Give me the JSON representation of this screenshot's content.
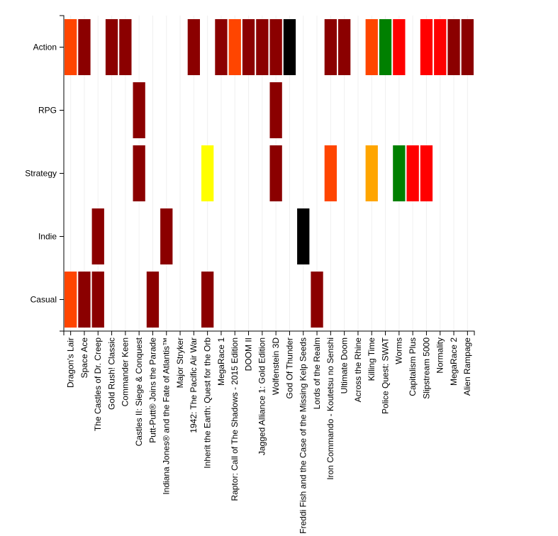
{
  "chart_data": {
    "type": "heatmap",
    "title": "",
    "xlabel": "",
    "ylabel": "",
    "y_categories": [
      "Action",
      "RPG",
      "Strategy",
      "Indie",
      "Casual"
    ],
    "x_categories": [
      "Dragon's Lair",
      "Space Ace",
      "The Castles of Dr. Creep",
      "Gold Rush! Classic",
      "Commander Keen",
      "Castles II: Siege & Conquest",
      "Putt-Putt® Joins the Parade",
      "Indiana Jones® and the Fate of Atlantis™",
      "Major Stryker",
      "1942: The Pacific Air War",
      "Inherit the Earth: Quest for the Orb",
      "MegaRace 1",
      "Raptor: Call of The Shadows - 2015 Edition",
      "DOOM II",
      "Jagged Alliance 1: Gold Edition",
      "Wolfenstein 3D",
      "God Of Thunder",
      "Freddi Fish and the Case of the Missing Kelp Seeds",
      "Lords of the Realm",
      "Iron Commando - Koutetsu no Senshi",
      "Ultimate Doom",
      "Across the Rhine",
      "Killing Time",
      "Police Quest: SWAT",
      "Worms",
      "Capitalism Plus",
      "Slipstream 5000",
      "Normality",
      "MegaRace 2",
      "Alien Rampage"
    ],
    "cells": [
      {
        "x": "Dragon's Lair",
        "y": "Action",
        "color": "#ff4500"
      },
      {
        "x": "Space Ace",
        "y": "Action",
        "color": "#8b0000"
      },
      {
        "x": "Gold Rush! Classic",
        "y": "Action",
        "color": "#8b0000"
      },
      {
        "x": "Commander Keen",
        "y": "Action",
        "color": "#8b0000"
      },
      {
        "x": "1942: The Pacific Air War",
        "y": "Action",
        "color": "#8b0000"
      },
      {
        "x": "MegaRace 1",
        "y": "Action",
        "color": "#8b0000"
      },
      {
        "x": "Raptor: Call of The Shadows - 2015 Edition",
        "y": "Action",
        "color": "#ff4500"
      },
      {
        "x": "DOOM II",
        "y": "Action",
        "color": "#8b0000"
      },
      {
        "x": "Jagged Alliance 1: Gold Edition",
        "y": "Action",
        "color": "#8b0000"
      },
      {
        "x": "Wolfenstein 3D",
        "y": "Action",
        "color": "#8b0000"
      },
      {
        "x": "God Of Thunder",
        "y": "Action",
        "color": "#000000"
      },
      {
        "x": "Iron Commando - Koutetsu no Senshi",
        "y": "Action",
        "color": "#8b0000"
      },
      {
        "x": "Ultimate Doom",
        "y": "Action",
        "color": "#8b0000"
      },
      {
        "x": "Killing Time",
        "y": "Action",
        "color": "#ff4500"
      },
      {
        "x": "Police Quest: SWAT",
        "y": "Action",
        "color": "#008000"
      },
      {
        "x": "Worms",
        "y": "Action",
        "color": "#ff0000"
      },
      {
        "x": "Slipstream 5000",
        "y": "Action",
        "color": "#ff0000"
      },
      {
        "x": "Normality",
        "y": "Action",
        "color": "#ff0000"
      },
      {
        "x": "MegaRace 2",
        "y": "Action",
        "color": "#8b0000"
      },
      {
        "x": "Alien Rampage",
        "y": "Action",
        "color": "#8b0000"
      },
      {
        "x": "Castles II: Siege & Conquest",
        "y": "RPG",
        "color": "#8b0000"
      },
      {
        "x": "Wolfenstein 3D",
        "y": "RPG",
        "color": "#8b0000"
      },
      {
        "x": "Castles II: Siege & Conquest",
        "y": "Strategy",
        "color": "#8b0000"
      },
      {
        "x": "Inherit the Earth: Quest for the Orb",
        "y": "Strategy",
        "color": "#ffff00"
      },
      {
        "x": "Wolfenstein 3D",
        "y": "Strategy",
        "color": "#8b0000"
      },
      {
        "x": "Iron Commando - Koutetsu no Senshi",
        "y": "Strategy",
        "color": "#ff4500"
      },
      {
        "x": "Killing Time",
        "y": "Strategy",
        "color": "#ffa500"
      },
      {
        "x": "Worms",
        "y": "Strategy",
        "color": "#008000"
      },
      {
        "x": "Capitalism Plus",
        "y": "Strategy",
        "color": "#ff0000"
      },
      {
        "x": "Slipstream 5000",
        "y": "Strategy",
        "color": "#ff0000"
      },
      {
        "x": "The Castles of Dr. Creep",
        "y": "Indie",
        "color": "#8b0000"
      },
      {
        "x": "Indiana Jones® and the Fate of Atlantis™",
        "y": "Indie",
        "color": "#8b0000"
      },
      {
        "x": "Freddi Fish and the Case of the Missing Kelp Seeds",
        "y": "Indie",
        "color": "#000000"
      },
      {
        "x": "Dragon's Lair",
        "y": "Casual",
        "color": "#ff4500"
      },
      {
        "x": "Space Ace",
        "y": "Casual",
        "color": "#8b0000"
      },
      {
        "x": "The Castles of Dr. Creep",
        "y": "Casual",
        "color": "#8b0000"
      },
      {
        "x": "Putt-Putt® Joins the Parade",
        "y": "Casual",
        "color": "#8b0000"
      },
      {
        "x": "Inherit the Earth: Quest for the Orb",
        "y": "Casual",
        "color": "#8b0000"
      },
      {
        "x": "Lords of the Realm",
        "y": "Casual",
        "color": "#8b0000"
      }
    ],
    "grid": true,
    "legend": "none"
  }
}
